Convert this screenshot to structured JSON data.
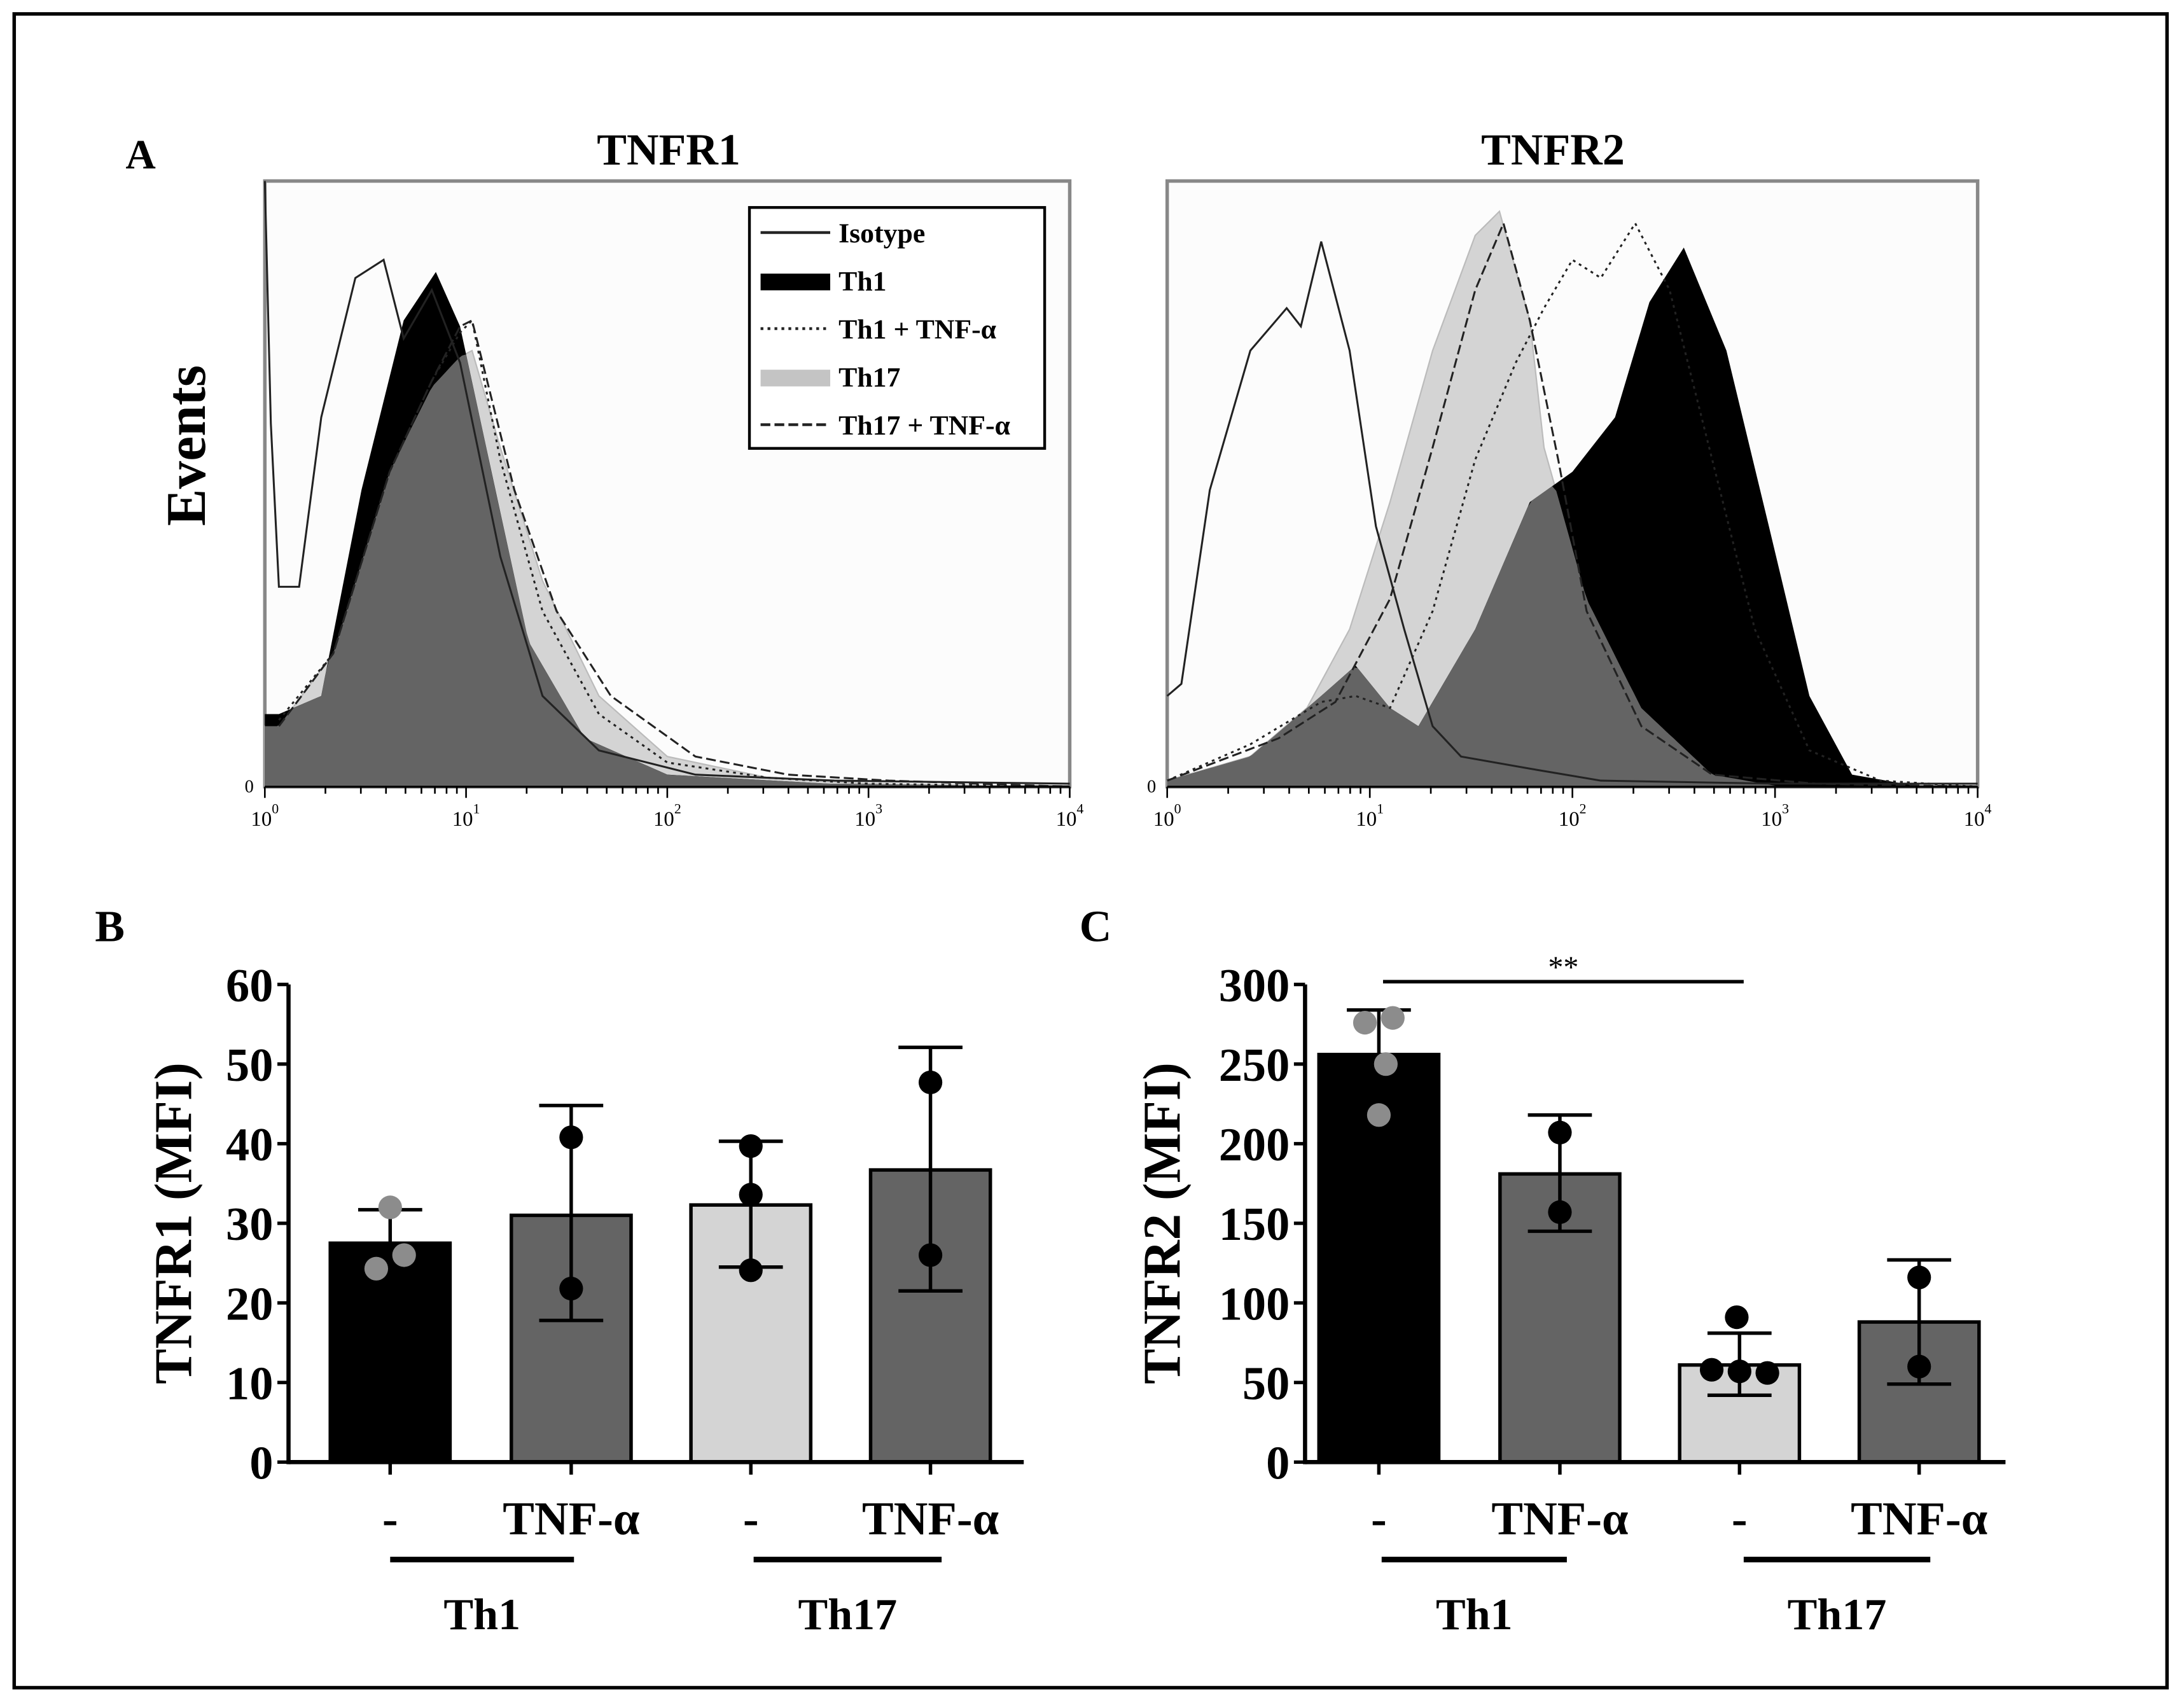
{
  "panel_labels": {
    "a": "A",
    "b": "B",
    "c": "C"
  },
  "colors": {
    "th1": "#000000",
    "th17": "#d4d4d4",
    "overlap": "#646464",
    "bar_tnf": "#646464",
    "dot_gray": "#8c8c8c",
    "frame": "#888888"
  },
  "chart_data": [
    {
      "type": "area",
      "title": "TNFR1",
      "ylabel": "Events",
      "xscale": "log",
      "xlim": [
        0,
        4
      ],
      "xtick_base": "10",
      "xtick_exps": [
        "0",
        "1",
        "2",
        "3",
        "4"
      ],
      "ytick_zero": "0",
      "legend": {
        "placement": "top-right",
        "entries": [
          "Isotype",
          "Th1",
          "Th1 + TNF-α",
          "Th17",
          "Th17 + TNF-α"
        ]
      },
      "series": [
        {
          "name": "Th17",
          "style": "fill-light",
          "points": [
            [
              0.0,
              10
            ],
            [
              0.07,
              10
            ],
            [
              0.34,
              22
            ],
            [
              0.62,
              52
            ],
            [
              0.83,
              66
            ],
            [
              0.97,
              71
            ],
            [
              1.03,
              72
            ],
            [
              1.17,
              56
            ],
            [
              1.38,
              34
            ],
            [
              1.66,
              15
            ],
            [
              2.0,
              5
            ],
            [
              2.5,
              1.5
            ],
            [
              3.0,
              0.5
            ],
            [
              4.0,
              0
            ]
          ]
        },
        {
          "name": "Th1",
          "style": "fill-black",
          "points": [
            [
              0.0,
              12
            ],
            [
              0.07,
              12
            ],
            [
              0.28,
              15
            ],
            [
              0.48,
              49
            ],
            [
              0.69,
              77
            ],
            [
              0.85,
              85
            ],
            [
              0.97,
              76
            ],
            [
              1.1,
              56
            ],
            [
              1.31,
              24
            ],
            [
              1.59,
              8
            ],
            [
              2.0,
              2
            ],
            [
              2.8,
              0.5
            ],
            [
              4.0,
              0
            ]
          ]
        },
        {
          "name": "Isotype",
          "style": "solid",
          "points": [
            [
              0.0,
              100
            ],
            [
              0.03,
              60
            ],
            [
              0.07,
              33
            ],
            [
              0.17,
              33
            ],
            [
              0.28,
              61
            ],
            [
              0.45,
              84
            ],
            [
              0.59,
              87
            ],
            [
              0.69,
              74
            ],
            [
              0.83,
              82
            ],
            [
              0.97,
              70
            ],
            [
              1.17,
              38
            ],
            [
              1.38,
              15
            ],
            [
              1.66,
              6
            ],
            [
              2.14,
              2
            ],
            [
              2.83,
              1
            ],
            [
              4.0,
              0.5
            ]
          ]
        },
        {
          "name": "Th1 + TNF-α",
          "style": "dotted",
          "points": [
            [
              0.07,
              11
            ],
            [
              0.34,
              22
            ],
            [
              0.62,
              52
            ],
            [
              0.83,
              67
            ],
            [
              0.97,
              75
            ],
            [
              1.03,
              77
            ],
            [
              1.17,
              54
            ],
            [
              1.38,
              29
            ],
            [
              1.66,
              12
            ],
            [
              2.0,
              4
            ],
            [
              2.5,
              1.5
            ],
            [
              3.0,
              0.5
            ],
            [
              4.0,
              0
            ]
          ]
        },
        {
          "name": "Th17 + TNF-α",
          "style": "dashed",
          "points": [
            [
              0.07,
              10
            ],
            [
              0.34,
              22
            ],
            [
              0.62,
              52
            ],
            [
              0.83,
              67
            ],
            [
              0.97,
              76
            ],
            [
              1.03,
              77
            ],
            [
              1.24,
              49
            ],
            [
              1.45,
              29
            ],
            [
              1.72,
              15
            ],
            [
              2.14,
              5
            ],
            [
              2.6,
              2
            ],
            [
              3.1,
              1
            ],
            [
              4.0,
              0
            ]
          ]
        }
      ]
    },
    {
      "type": "area",
      "title": "TNFR2",
      "xscale": "log",
      "xlim": [
        0,
        4
      ],
      "xtick_base": "10",
      "xtick_exps": [
        "0",
        "1",
        "2",
        "3",
        "4"
      ],
      "ytick_zero": "0",
      "series": [
        {
          "name": "Th17",
          "style": "fill-light",
          "points": [
            [
              0.0,
              1
            ],
            [
              0.41,
              5
            ],
            [
              0.69,
              13
            ],
            [
              0.9,
              26
            ],
            [
              1.1,
              47
            ],
            [
              1.31,
              72
            ],
            [
              1.52,
              91
            ],
            [
              1.64,
              95
            ],
            [
              1.79,
              77
            ],
            [
              1.86,
              56
            ],
            [
              2.07,
              31
            ],
            [
              2.34,
              13
            ],
            [
              2.69,
              2
            ],
            [
              3.03,
              0
            ],
            [
              4.0,
              0
            ]
          ]
        },
        {
          "name": "Th1",
          "style": "fill-black",
          "points": [
            [
              0.0,
              1
            ],
            [
              0.41,
              5
            ],
            [
              0.76,
              15
            ],
            [
              0.93,
              20
            ],
            [
              1.1,
              13
            ],
            [
              1.24,
              10
            ],
            [
              1.52,
              26
            ],
            [
              1.79,
              47
            ],
            [
              2.0,
              52
            ],
            [
              2.21,
              61
            ],
            [
              2.38,
              80
            ],
            [
              2.55,
              89
            ],
            [
              2.76,
              72
            ],
            [
              2.97,
              43
            ],
            [
              3.17,
              15
            ],
            [
              3.38,
              2
            ],
            [
              3.72,
              0
            ],
            [
              4.0,
              0
            ]
          ]
        },
        {
          "name": "Isotype",
          "style": "solid",
          "points": [
            [
              0.0,
              15
            ],
            [
              0.07,
              17
            ],
            [
              0.21,
              49
            ],
            [
              0.41,
              72
            ],
            [
              0.59,
              79
            ],
            [
              0.66,
              76
            ],
            [
              0.76,
              90
            ],
            [
              0.9,
              72
            ],
            [
              1.03,
              43
            ],
            [
              1.17,
              26
            ],
            [
              1.31,
              10
            ],
            [
              1.45,
              5
            ],
            [
              1.79,
              3
            ],
            [
              2.14,
              1
            ],
            [
              3.0,
              0.5
            ],
            [
              4.0,
              0.5
            ]
          ]
        },
        {
          "name": "Th1 + TNF-α",
          "style": "dotted",
          "points": [
            [
              0.0,
              1
            ],
            [
              0.41,
              7
            ],
            [
              0.76,
              14
            ],
            [
              0.93,
              15
            ],
            [
              1.1,
              13
            ],
            [
              1.31,
              29
            ],
            [
              1.52,
              54
            ],
            [
              1.72,
              70
            ],
            [
              1.86,
              79
            ],
            [
              2.0,
              87
            ],
            [
              2.14,
              84
            ],
            [
              2.31,
              93
            ],
            [
              2.48,
              82
            ],
            [
              2.69,
              54
            ],
            [
              2.9,
              26
            ],
            [
              3.17,
              6
            ],
            [
              3.52,
              1
            ],
            [
              4.0,
              0
            ]
          ]
        },
        {
          "name": "Th17 + TNF-α",
          "style": "dashed",
          "points": [
            [
              0.0,
              1
            ],
            [
              0.55,
              8
            ],
            [
              0.83,
              14
            ],
            [
              1.1,
              31
            ],
            [
              1.31,
              56
            ],
            [
              1.52,
              82
            ],
            [
              1.66,
              93
            ],
            [
              1.79,
              77
            ],
            [
              1.93,
              54
            ],
            [
              2.07,
              29
            ],
            [
              2.34,
              10
            ],
            [
              2.69,
              2
            ],
            [
              3.2,
              0.5
            ],
            [
              4.0,
              0
            ]
          ]
        }
      ]
    },
    {
      "type": "bar",
      "panel": "B",
      "ylabel": "TNFR1 (MFI)",
      "ylim": [
        0,
        60
      ],
      "yticks": [
        "0",
        "10",
        "20",
        "30",
        "40",
        "50",
        "60"
      ],
      "categories": [
        "-",
        "TNF-α",
        "-",
        "TNF-α"
      ],
      "groups": [
        {
          "label": "Th1"
        },
        {
          "label": "Th17"
        }
      ],
      "bars": [
        {
          "mean": 27.5,
          "err_high": 31.7,
          "err_low": 23.3,
          "color": "th1",
          "points": [
            32.0,
            26.0,
            24.3
          ],
          "dot": "gray"
        },
        {
          "mean": 31.0,
          "err_high": 44.8,
          "err_low": 17.8,
          "color": "bar_tnf",
          "points": [
            40.8,
            21.8
          ],
          "dot": "black"
        },
        {
          "mean": 32.3,
          "err_high": 40.3,
          "err_low": 24.5,
          "color": "th17",
          "points": [
            39.7,
            33.6,
            24.1
          ],
          "dot": "black"
        },
        {
          "mean": 36.7,
          "err_high": 52.1,
          "err_low": 21.5,
          "color": "bar_tnf",
          "points": [
            47.7,
            26.0
          ],
          "dot": "black"
        }
      ]
    },
    {
      "type": "bar",
      "panel": "C",
      "ylabel": "TNFR2 (MFI)",
      "ylim": [
        0,
        300
      ],
      "yticks": [
        "0",
        "50",
        "100",
        "150",
        "200",
        "250",
        "300"
      ],
      "categories": [
        "-",
        "TNF-α",
        "-",
        "TNF-α"
      ],
      "groups": [
        {
          "label": "Th1"
        },
        {
          "label": "Th17"
        }
      ],
      "significance": {
        "from": 0,
        "to": 2,
        "label": "**"
      },
      "bars": [
        {
          "mean": 256,
          "err_high": 284,
          "err_low": 228,
          "color": "th1",
          "points": [
            276,
            279,
            250,
            218
          ],
          "dot": "gray"
        },
        {
          "mean": 181,
          "err_high": 218,
          "err_low": 145,
          "color": "bar_tnf",
          "points": [
            207,
            157
          ],
          "dot": "black"
        },
        {
          "mean": 61,
          "err_high": 81,
          "err_low": 42,
          "color": "th17",
          "points": [
            91,
            58,
            57,
            56
          ],
          "dot": "black"
        },
        {
          "mean": 88,
          "err_high": 127,
          "err_low": 49,
          "color": "bar_tnf",
          "points": [
            116,
            60
          ],
          "dot": "black"
        }
      ]
    }
  ]
}
